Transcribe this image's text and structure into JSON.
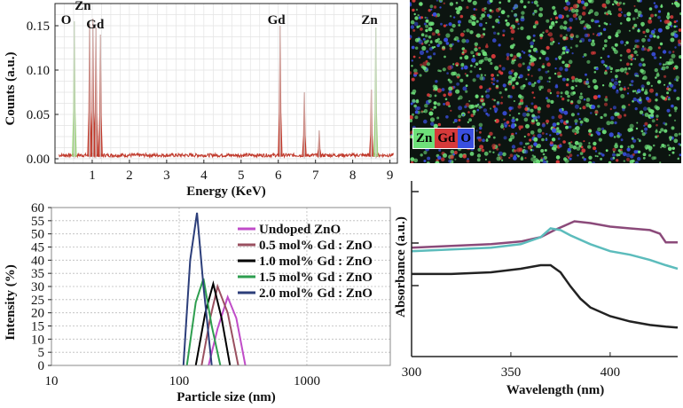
{
  "chart_data": [
    {
      "id": "edx",
      "type": "line",
      "xlabel": "Energy (KeV)",
      "ylabel": "Counts (a.u.)",
      "xlim": [
        0,
        9.2
      ],
      "ylim": [
        -0.005,
        0.175
      ],
      "xticks": [
        1,
        2,
        3,
        4,
        5,
        6,
        7,
        8,
        9
      ],
      "yticks": [
        0.0,
        0.05,
        0.1,
        0.15
      ],
      "ytick_labels": [
        "0.00",
        "0.05",
        "0.10",
        "0.15"
      ],
      "grid": true,
      "series_color": "#c0392b",
      "peaks": [
        {
          "x": 0.52,
          "y": 0.155,
          "color": "#9bd27a"
        },
        {
          "x": 0.93,
          "y": 0.152,
          "color": "#c0392b"
        },
        {
          "x": 1.02,
          "y": 0.158,
          "color": "#c0392b"
        },
        {
          "x": 1.1,
          "y": 0.148,
          "color": "#c0392b"
        },
        {
          "x": 1.22,
          "y": 0.14,
          "color": "#c0392b"
        },
        {
          "x": 6.05,
          "y": 0.15,
          "color": "#c0392b"
        },
        {
          "x": 6.7,
          "y": 0.075,
          "color": "#c0392b"
        },
        {
          "x": 7.1,
          "y": 0.032,
          "color": "#c0392b"
        },
        {
          "x": 8.5,
          "y": 0.078,
          "color": "#c0392b"
        },
        {
          "x": 8.62,
          "y": 0.148,
          "color": "#9bd27a"
        }
      ],
      "annotations": [
        {
          "text": "O",
          "x": 0.3,
          "y": 0.152
        },
        {
          "text": "Zn",
          "x": 0.75,
          "y": 0.168
        },
        {
          "text": "Gd",
          "x": 1.08,
          "y": 0.147
        },
        {
          "text": "Gd",
          "x": 5.95,
          "y": 0.152
        },
        {
          "text": "Zn",
          "x": 8.45,
          "y": 0.152
        }
      ]
    },
    {
      "id": "dls",
      "type": "line",
      "xlabel": "Particle size (nm)",
      "ylabel": "Intensity (%)",
      "xscale": "log",
      "xlim": [
        10,
        4500
      ],
      "ylim": [
        0,
        60
      ],
      "xticks": [
        10,
        100,
        1000
      ],
      "xtick_labels": [
        "10",
        "100",
        "1000"
      ],
      "yticks": [
        0,
        5,
        10,
        15,
        20,
        25,
        30,
        35,
        40,
        45,
        50,
        55,
        60
      ],
      "grid": true,
      "legend_position": "top-right",
      "series": [
        {
          "name": "Undoped ZnO",
          "color": "#c04cc8",
          "x": [
            170,
            200,
            240,
            280,
            330
          ],
          "y": [
            0,
            14,
            26,
            18,
            0
          ]
        },
        {
          "name": "0.5 mol% Gd : ZnO",
          "color": "#9a5060",
          "x": [
            150,
            175,
            200,
            240,
            290
          ],
          "y": [
            0,
            18,
            30,
            20,
            0
          ]
        },
        {
          "name": "1.0 mol% Gd : ZnO",
          "color": "#000000",
          "x": [
            135,
            160,
            185,
            215,
            250
          ],
          "y": [
            0,
            20,
            31,
            18,
            0
          ]
        },
        {
          "name": "1.5 mol% Gd : ZnO",
          "color": "#2e9e4f",
          "x": [
            115,
            135,
            155,
            180,
            210
          ],
          "y": [
            0,
            24,
            33,
            15,
            0
          ]
        },
        {
          "name": "2.0 mol% Gd : ZnO",
          "color": "#2c3e7a",
          "x": [
            108,
            122,
            138,
            155,
            180
          ],
          "y": [
            0,
            40,
            58,
            30,
            0
          ]
        }
      ]
    },
    {
      "id": "absorbance",
      "type": "line",
      "xlabel": "Wavelength (nm)",
      "ylabel": "Absorbance (a.u.)",
      "xlim": [
        300,
        434
      ],
      "xticks": [
        300,
        350,
        400
      ],
      "grid": false,
      "series": [
        {
          "color": "#8b4a7a",
          "x": [
            300,
            320,
            340,
            355,
            365,
            372,
            378,
            382,
            390,
            400,
            410,
            420,
            425,
            428,
            434
          ],
          "y": [
            0.62,
            0.63,
            0.64,
            0.655,
            0.68,
            0.72,
            0.75,
            0.77,
            0.76,
            0.74,
            0.73,
            0.72,
            0.7,
            0.65,
            0.65
          ]
        },
        {
          "color": "#5cbcbc",
          "x": [
            300,
            320,
            340,
            355,
            365,
            370,
            375,
            380,
            390,
            400,
            410,
            420,
            428,
            434
          ],
          "y": [
            0.6,
            0.61,
            0.62,
            0.64,
            0.68,
            0.73,
            0.72,
            0.69,
            0.64,
            0.6,
            0.58,
            0.55,
            0.52,
            0.5
          ]
        },
        {
          "color": "#222222",
          "x": [
            300,
            320,
            340,
            355,
            365,
            370,
            375,
            380,
            385,
            390,
            400,
            410,
            420,
            428,
            434
          ],
          "y": [
            0.47,
            0.47,
            0.48,
            0.5,
            0.52,
            0.52,
            0.48,
            0.4,
            0.33,
            0.28,
            0.23,
            0.2,
            0.18,
            0.17,
            0.165
          ]
        }
      ]
    }
  ],
  "elemental_map": {
    "legend": [
      {
        "text": "Zn",
        "color": "#6ee07a"
      },
      {
        "text": "Gd",
        "color": "#d63a3a"
      },
      {
        "text": "O",
        "color": "#3a4fe0"
      }
    ]
  }
}
